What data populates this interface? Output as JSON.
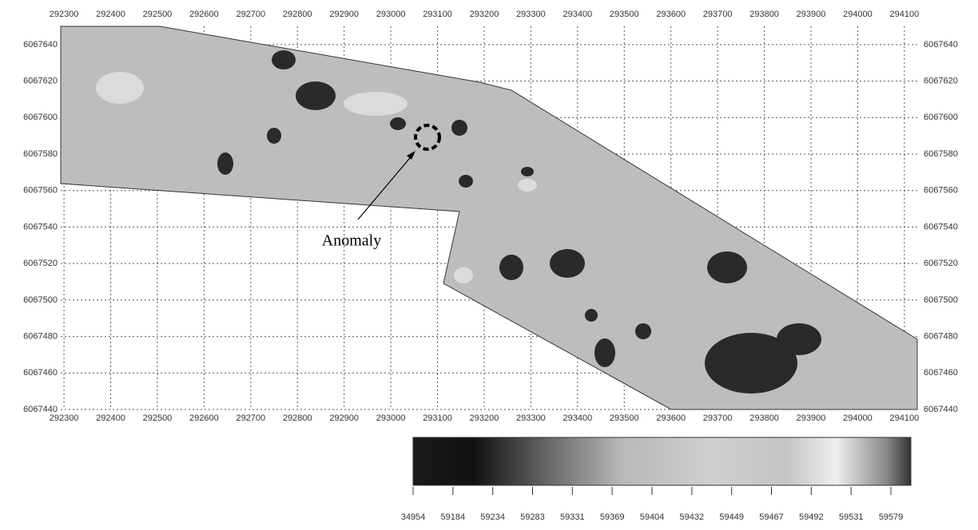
{
  "map": {
    "xlim": [
      292293,
      294131
    ],
    "ylim": [
      6067440,
      6067650
    ],
    "xticks": [
      292300,
      292400,
      292500,
      292600,
      292700,
      292800,
      292900,
      293000,
      293100,
      293200,
      293300,
      293400,
      293500,
      293600,
      293700,
      293800,
      293900,
      294000,
      294100
    ],
    "yticks": [
      6067440,
      6067460,
      6067480,
      6067500,
      6067520,
      6067540,
      6067560,
      6067580,
      6067600,
      6067620,
      6067640
    ],
    "annotation": "Anomaly",
    "colorbar_labels": [
      34954,
      59184,
      59234,
      59283,
      59331,
      59369,
      59404,
      59432,
      59449,
      59467,
      59492,
      59531,
      59579
    ]
  }
}
